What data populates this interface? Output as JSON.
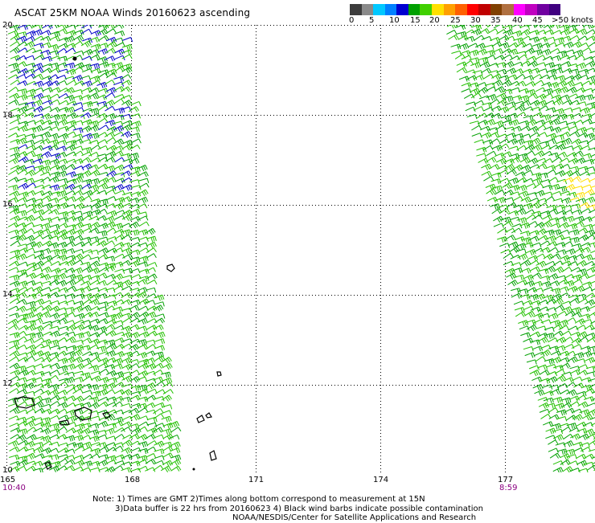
{
  "title": "ASCAT 25KM NOAA Winds 20160623 ascending",
  "scale": {
    "colors": [
      "#3c3c3c",
      "#8a8a8a",
      "#00c8ff",
      "#0080ff",
      "#0000d0",
      "#00a000",
      "#40d000",
      "#ffe000",
      "#ffa000",
      "#ff6000",
      "#ff0000",
      "#c00000",
      "#804000",
      "#b07040",
      "#ff00ff",
      "#c000c0",
      "#7000a0",
      "#400080"
    ],
    "labels": [
      "0",
      "5",
      "10",
      "15",
      "20",
      "25",
      "30",
      "35",
      "40",
      "45",
      ">50 knots"
    ]
  },
  "map": {
    "lat_labels": [
      "20",
      "18",
      "16",
      "14",
      "12",
      "10"
    ],
    "lon_labels": [
      "165",
      "168",
      "171",
      "174",
      "177"
    ],
    "time_left": "10:40",
    "time_right": "8:59"
  },
  "notes": [
    "Note: 1) Times are GMT 2)Times along bottom correspond to measurement at 15N",
    "3)Data buffer is 22 hrs from 20160623 4) Black wind barbs indicate possible contamination",
    "NOAA/NESDIS/Center for Satellite Applications and Research"
  ]
}
